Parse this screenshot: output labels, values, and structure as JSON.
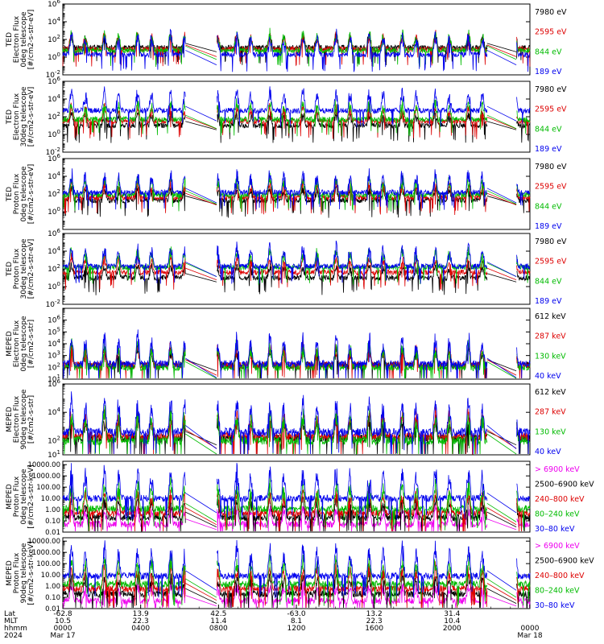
{
  "chart_data": [
    {
      "type": "line",
      "panel": "ted-electron-0deg",
      "ylabel_lines": [
        "TED",
        "Electron Flux",
        "0deg telescope",
        "[#/cm2-s-str-eV]"
      ],
      "scale": "log",
      "ylim": [
        0.01,
        1000000
      ],
      "ticks": [
        {
          "v": 0.01,
          "exp": "-2"
        },
        {
          "v": 1,
          "exp": "0"
        },
        {
          "v": 100,
          "exp": "2"
        },
        {
          "v": 10000,
          "exp": "4"
        },
        {
          "v": 1000000,
          "exp": "6"
        }
      ],
      "legend": [
        {
          "label": "7980 eV",
          "color": "#000000"
        },
        {
          "label": "2595 eV",
          "color": "#dd0000"
        },
        {
          "label": "844 eV",
          "color": "#00bb00"
        },
        {
          "label": "189 eV",
          "color": "#0000ee"
        }
      ],
      "series_levels": [
        12,
        8,
        6,
        2
      ]
    },
    {
      "type": "line",
      "panel": "ted-electron-30deg",
      "ylabel_lines": [
        "TED",
        "Electron Flux",
        "30deg telescope",
        "[#/cm2-s-str-eV]"
      ],
      "scale": "log",
      "ylim": [
        0.01,
        1000000
      ],
      "ticks": [
        {
          "v": 0.01,
          "exp": "-2"
        },
        {
          "v": 1,
          "exp": "0"
        },
        {
          "v": 100,
          "exp": "2"
        },
        {
          "v": 10000,
          "exp": "4"
        },
        {
          "v": 1000000,
          "exp": "6"
        }
      ],
      "legend": [
        {
          "label": "7980 eV",
          "color": "#000000"
        },
        {
          "label": "2595 eV",
          "color": "#dd0000"
        },
        {
          "label": "844 eV",
          "color": "#00bb00"
        },
        {
          "label": "189 eV",
          "color": "#0000ee"
        }
      ],
      "series_levels": [
        10,
        30,
        50,
        500
      ]
    },
    {
      "type": "line",
      "panel": "ted-proton-0deg",
      "ylabel_lines": [
        "TED",
        "Proton Flux",
        "0deg telescope",
        "[#/cm2-s-str-eV]"
      ],
      "scale": "log",
      "ylim": [
        0.01,
        1000000
      ],
      "ticks": [
        {
          "v": 1,
          "exp": "0"
        },
        {
          "v": 100,
          "exp": "2"
        },
        {
          "v": 10000,
          "exp": "4"
        },
        {
          "v": 1000000,
          "exp": "6"
        }
      ],
      "legend": [
        {
          "label": "7980 eV",
          "color": "#000000"
        },
        {
          "label": "2595 eV",
          "color": "#dd0000"
        },
        {
          "label": "844 eV",
          "color": "#00bb00"
        },
        {
          "label": "189 eV",
          "color": "#0000ee"
        }
      ],
      "series_levels": [
        20,
        40,
        80,
        150
      ]
    },
    {
      "type": "line",
      "panel": "ted-proton-30deg",
      "ylabel_lines": [
        "TED",
        "Proton Flux",
        "30deg telescope",
        "[#/cm2-s-str-eV]"
      ],
      "scale": "log",
      "ylim": [
        0.01,
        1000000
      ],
      "ticks": [
        {
          "v": 0.01,
          "exp": "-2"
        },
        {
          "v": 1,
          "exp": "0"
        },
        {
          "v": 100,
          "exp": "2"
        },
        {
          "v": 10000,
          "exp": "4"
        },
        {
          "v": 1000000,
          "exp": "6"
        }
      ],
      "legend": [
        {
          "label": "7980 eV",
          "color": "#000000"
        },
        {
          "label": "2595 eV",
          "color": "#dd0000"
        },
        {
          "label": "844 eV",
          "color": "#00bb00"
        },
        {
          "label": "189 eV",
          "color": "#0000ee"
        }
      ],
      "series_levels": [
        10,
        40,
        150,
        200
      ]
    },
    {
      "type": "line",
      "panel": "meped-electron-0deg",
      "ylabel_lines": [
        "MEPED",
        "Electron Flux",
        "0deg telescope",
        "[#/cm2-s-str]"
      ],
      "scale": "log",
      "ylim": [
        10,
        10000000
      ],
      "ticks": [
        {
          "v": 10,
          "exp": "1"
        },
        {
          "v": 100,
          "exp": "2"
        },
        {
          "v": 1000,
          "exp": "3"
        },
        {
          "v": 10000,
          "exp": "4"
        },
        {
          "v": 100000,
          "exp": "5"
        },
        {
          "v": 1000000,
          "exp": "6"
        }
      ],
      "legend": [
        {
          "label": "612 keV",
          "color": "#000000"
        },
        {
          "label": "287 keV",
          "color": "#dd0000"
        },
        {
          "label": "130 keV",
          "color": "#00bb00"
        },
        {
          "label": "40 keV",
          "color": "#0000ee"
        }
      ],
      "series_levels": [
        150,
        150,
        100,
        200
      ]
    },
    {
      "type": "line",
      "panel": "meped-electron-90deg",
      "ylabel_lines": [
        "MEPED",
        "Electron Flux",
        "90deg telescope",
        "[#/cm2-s-str]"
      ],
      "scale": "log",
      "ylim": [
        10,
        1000000
      ],
      "ticks": [
        {
          "v": 10,
          "exp": "1"
        },
        {
          "v": 100,
          "exp": "2"
        },
        {
          "v": 10000,
          "exp": "4"
        },
        {
          "v": 1000000,
          "exp": "6"
        }
      ],
      "legend": [
        {
          "label": "612 keV",
          "color": "#000000"
        },
        {
          "label": "287 keV",
          "color": "#dd0000"
        },
        {
          "label": "130 keV",
          "color": "#00bb00"
        },
        {
          "label": "40 keV",
          "color": "#0000ee"
        }
      ],
      "series_levels": [
        150,
        200,
        100,
        400
      ]
    },
    {
      "type": "line",
      "panel": "meped-proton-0deg",
      "ylabel_lines": [
        "MEPED",
        "Proton Flux",
        "0deg telescope",
        "[#/cm2-s-str-keV]"
      ],
      "scale": "log",
      "ylim": [
        0.01,
        20000
      ],
      "ticks": [
        {
          "v": 0.01,
          "label": "0.01"
        },
        {
          "v": 0.1,
          "label": "0.10"
        },
        {
          "v": 1,
          "label": "1.00"
        },
        {
          "v": 10,
          "label": "10.00"
        },
        {
          "v": 100,
          "label": "100.00"
        },
        {
          "v": 1000,
          "label": "1000.00"
        },
        {
          "v": 10000,
          "label": "10000.00"
        }
      ],
      "legend": [
        {
          "label": "> 6900 keV",
          "color": "#ee00ee"
        },
        {
          "label": "2500–6900 keV",
          "color": "#000000"
        },
        {
          "label": "240–800 keV",
          "color": "#dd0000"
        },
        {
          "label": "80–240 keV",
          "color": "#00bb00"
        },
        {
          "label": "30–80 keV",
          "color": "#0000ee"
        }
      ],
      "series_levels": [
        0.05,
        0.2,
        0.5,
        1.2,
        10
      ]
    },
    {
      "type": "line",
      "panel": "meped-proton-90deg",
      "ylabel_lines": [
        "MEPED",
        "Proton Flux",
        "90deg telescope",
        "[#/cm2-s-str-keV]"
      ],
      "scale": "log",
      "ylim": [
        0.01,
        20000
      ],
      "ticks": [
        {
          "v": 0.01,
          "label": "0.01"
        },
        {
          "v": 0.1,
          "label": "0.10"
        },
        {
          "v": 1,
          "label": "1.00"
        },
        {
          "v": 10,
          "label": "10.00"
        },
        {
          "v": 100,
          "label": "100.00"
        },
        {
          "v": 1000,
          "label": "1000.00"
        },
        {
          "v": 10000,
          "label": "10000.00"
        }
      ],
      "legend": [
        {
          "label": "> 6900 keV",
          "color": "#ee00ee"
        },
        {
          "label": "2500–6900 keV",
          "color": "#000000"
        },
        {
          "label": "240–800 keV",
          "color": "#dd0000"
        },
        {
          "label": "80–240 keV",
          "color": "#00bb00"
        },
        {
          "label": "30–80 keV",
          "color": "#0000ee"
        }
      ],
      "series_levels": [
        0.05,
        0.2,
        0.6,
        1.5,
        8
      ]
    }
  ],
  "time_axis": {
    "row_labels": [
      "Lat",
      "MLT",
      "hhmm",
      "2024"
    ],
    "columns": [
      {
        "hour": 0,
        "lat": "-62.8",
        "mlt": "10.5",
        "hhmm": "0000",
        "date": "Mar 17"
      },
      {
        "hour": 4,
        "lat": "13.9",
        "mlt": "22.3",
        "hhmm": "0400",
        "date": ""
      },
      {
        "hour": 8,
        "lat": "42.5",
        "mlt": "11.4",
        "hhmm": "0800",
        "date": ""
      },
      {
        "hour": 12,
        "lat": "-63.0",
        "mlt": "8.1",
        "hhmm": "1200",
        "date": ""
      },
      {
        "hour": 16,
        "lat": "13.2",
        "mlt": "22.3",
        "hhmm": "1600",
        "date": ""
      },
      {
        "hour": 20,
        "lat": "31.4",
        "mlt": "10.4",
        "hhmm": "2000",
        "date": ""
      },
      {
        "hour": 24,
        "lat": "",
        "mlt": "",
        "hhmm": "0000",
        "date": "Mar 18"
      }
    ],
    "data_gaps_hours": [
      [
        6.3,
        7.9
      ],
      [
        21.8,
        23.3
      ]
    ],
    "orbit_period_hours": 1.7
  }
}
